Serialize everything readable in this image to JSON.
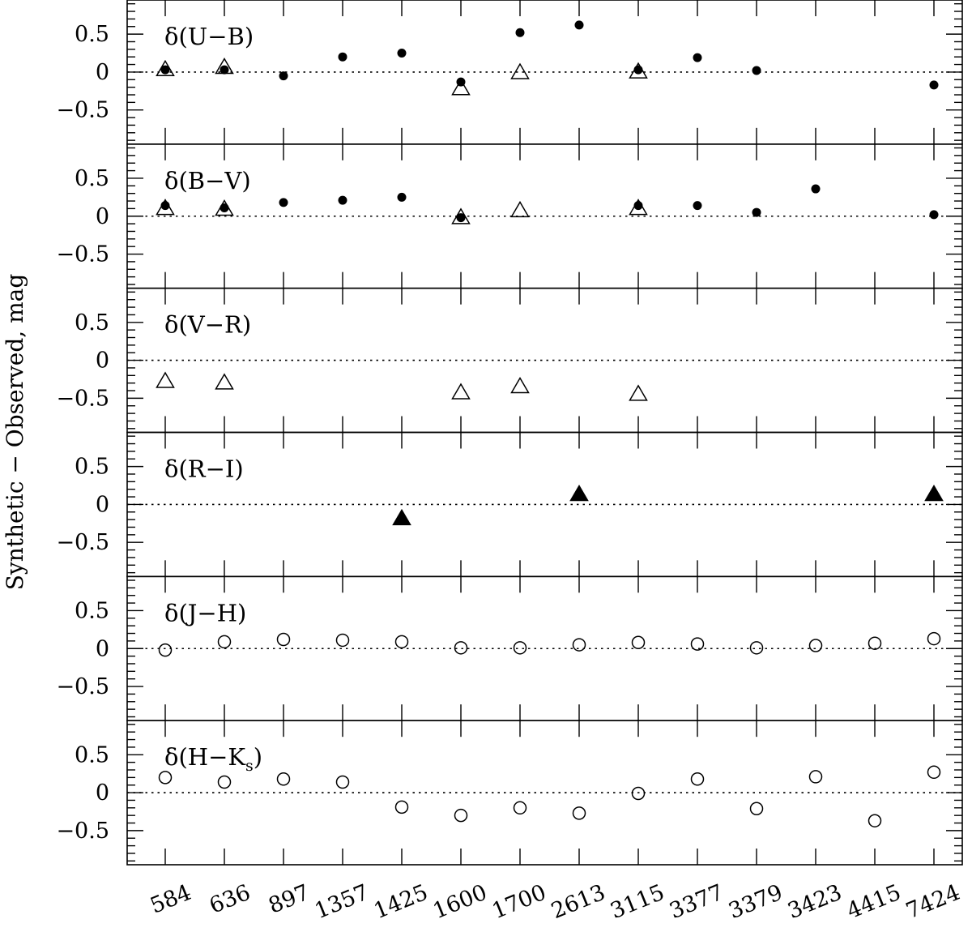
{
  "chart_data": {
    "type": "scatter",
    "ylabel": "Synthetic − Observed, mag",
    "categories": [
      "584",
      "636",
      "897",
      "1357",
      "1425",
      "1600",
      "1700",
      "2613",
      "3115",
      "3377",
      "3379",
      "3423",
      "4415",
      "7424"
    ],
    "ylim": [
      -0.95,
      0.95
    ],
    "yticks": [
      0.5,
      0,
      -0.5
    ],
    "ytick_labels": [
      "0.5",
      "0",
      "−0.5"
    ],
    "zero_line": "dotted",
    "panels": [
      {
        "label": "δ(U−B)",
        "series": [
          {
            "marker": "filled-circle",
            "x": [
              "584",
              "636",
              "897",
              "1357",
              "1425",
              "1600",
              "1700",
              "2613",
              "3115",
              "3377",
              "3379",
              "7424"
            ],
            "y": [
              0.03,
              0.03,
              -0.05,
              0.2,
              0.25,
              -0.13,
              0.52,
              0.62,
              0.03,
              0.19,
              0.02,
              -0.17
            ]
          },
          {
            "marker": "open-triangle",
            "x": [
              "584",
              "636",
              "1600",
              "1700",
              "3115"
            ],
            "y": [
              0.03,
              0.06,
              -0.22,
              -0.01,
              0.0
            ]
          }
        ]
      },
      {
        "label": "δ(B−V)",
        "series": [
          {
            "marker": "filled-circle",
            "x": [
              "584",
              "636",
              "897",
              "1357",
              "1425",
              "1600",
              "3115",
              "3377",
              "3379",
              "3423",
              "7424"
            ],
            "y": [
              0.14,
              0.11,
              0.18,
              0.21,
              0.25,
              -0.02,
              0.14,
              0.14,
              0.05,
              0.36,
              0.02
            ]
          },
          {
            "marker": "open-triangle",
            "x": [
              "584",
              "636",
              "1600",
              "1700",
              "3115"
            ],
            "y": [
              0.1,
              0.09,
              -0.02,
              0.07,
              0.1
            ]
          }
        ]
      },
      {
        "label": "δ(V−R)",
        "series": [
          {
            "marker": "open-triangle",
            "x": [
              "584",
              "636",
              "1600",
              "1700",
              "3115"
            ],
            "y": [
              -0.28,
              -0.3,
              -0.43,
              -0.35,
              -0.45
            ]
          }
        ]
      },
      {
        "label": "δ(R−I)",
        "series": [
          {
            "marker": "filled-triangle",
            "x": [
              "1425",
              "2613",
              "7424"
            ],
            "y": [
              -0.19,
              0.13,
              0.13
            ]
          }
        ]
      },
      {
        "label": "δ(J−H)",
        "series": [
          {
            "marker": "open-circle",
            "x": [
              "584",
              "636",
              "897",
              "1357",
              "1425",
              "1600",
              "1700",
              "2613",
              "3115",
              "3377",
              "3379",
              "3423",
              "4415",
              "7424"
            ],
            "y": [
              -0.02,
              0.09,
              0.12,
              0.11,
              0.09,
              0.01,
              0.01,
              0.05,
              0.08,
              0.06,
              0.01,
              0.04,
              0.07,
              0.13
            ]
          }
        ]
      },
      {
        "label": "δ(H−K",
        "label_subscript": "s",
        "label_suffix": ")",
        "series": [
          {
            "marker": "open-circle",
            "x": [
              "584",
              "636",
              "897",
              "1357",
              "1425",
              "1600",
              "1700",
              "2613",
              "3115",
              "3377",
              "3379",
              "3423",
              "4415",
              "7424"
            ],
            "y": [
              0.2,
              0.14,
              0.18,
              0.14,
              -0.19,
              -0.3,
              -0.2,
              -0.27,
              -0.01,
              0.18,
              -0.21,
              0.21,
              -0.37,
              0.27
            ]
          }
        ]
      }
    ]
  }
}
